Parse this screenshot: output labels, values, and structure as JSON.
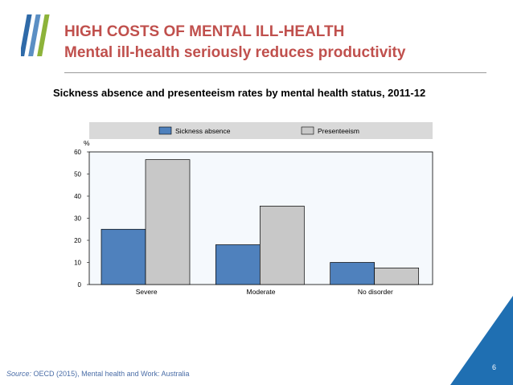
{
  "header": {
    "title": "HIGH COSTS OF MENTAL ILL-HEALTH",
    "subtitle": "Mental ill-health seriously reduces productivity"
  },
  "chart_title": "Sickness absence and presenteeism rates by mental health status, 2011-12",
  "chart_data": {
    "type": "bar",
    "title": "Sickness absence and presenteeism rates by mental health status, 2011-12",
    "ylabel": "%",
    "xlabel": "",
    "ylim": [
      0,
      60
    ],
    "yticks": [
      0,
      10,
      20,
      30,
      40,
      50,
      60
    ],
    "categories": [
      "Severe",
      "Moderate",
      "No disorder"
    ],
    "series": [
      {
        "name": "Sickness absence",
        "color": "#4f81bd",
        "values": [
          25,
          18,
          10
        ]
      },
      {
        "name": "Presenteeism",
        "color": "#c8c8c8",
        "values": [
          56.5,
          35.5,
          7.5
        ]
      }
    ],
    "legend": "top"
  },
  "footer": {
    "source_label": "Source:",
    "source_text": "OECD (2015), Mental health and Work: Australia",
    "page_number": "6"
  },
  "colors": {
    "accent": "#c0504d",
    "brand_blue": "#1f6fb2",
    "logo_green": "#8db33a"
  }
}
